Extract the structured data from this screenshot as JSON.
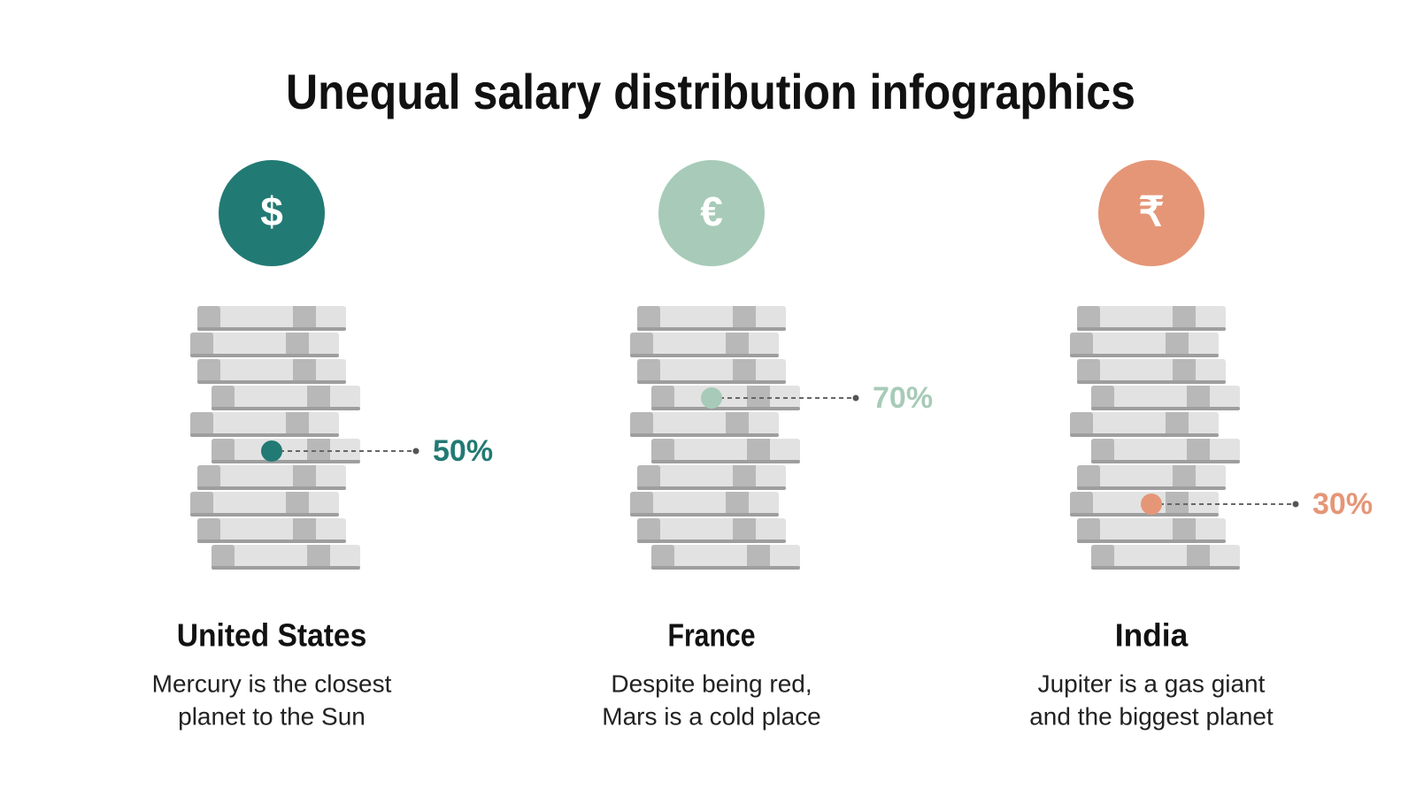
{
  "title": "Unequal salary distribution infographics",
  "items": [
    {
      "icon": "$",
      "color": "#227a74",
      "value": 50,
      "value_label": "50%",
      "heading": "United States",
      "text": [
        "Mercury is the closest",
        "planet to the Sun"
      ]
    },
    {
      "icon": "€",
      "color": "#a7cbb8",
      "value": 70,
      "value_label": "70%",
      "heading": "France",
      "text": [
        "Despite being red,",
        "Mars is a cold place"
      ]
    },
    {
      "icon": "₹",
      "color": "#e59677",
      "value": 30,
      "value_label": "30%",
      "heading": "India",
      "text": [
        "Jupiter is a gas giant",
        "and the biggest planet"
      ]
    }
  ]
}
